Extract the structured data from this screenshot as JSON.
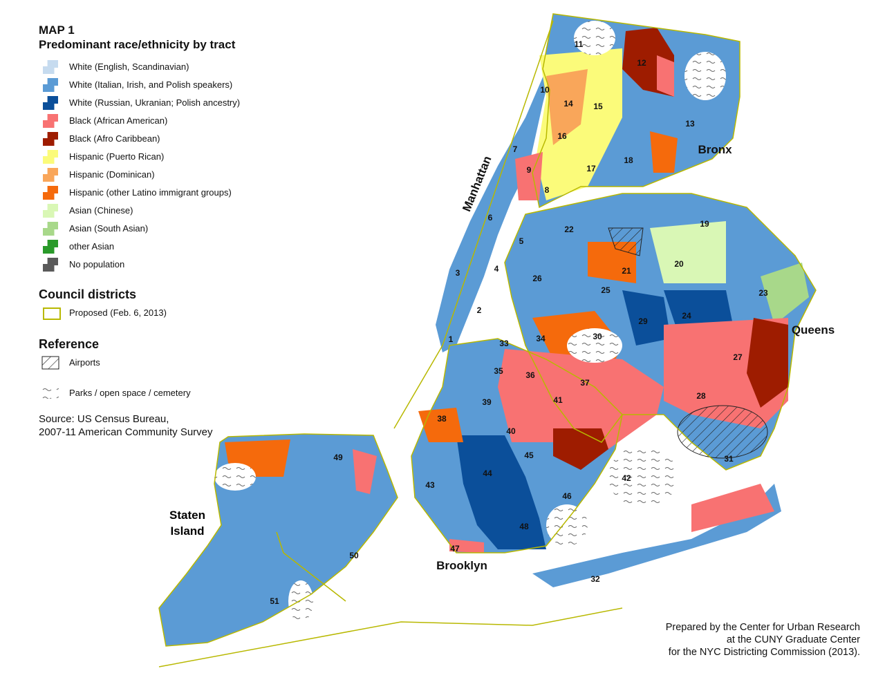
{
  "title": "MAP 1",
  "subtitle": "Predominant race/ethnicity by tract",
  "legend": [
    {
      "label": "White (English, Scandinavian)",
      "color": "#c6dbef"
    },
    {
      "label": "White (Italian, Irish, and Polish speakers)",
      "color": "#5b9bd5"
    },
    {
      "label": "White (Russian, Ukranian; Polish ancestry)",
      "color": "#0b4f9a"
    },
    {
      "label": "Black (African American)",
      "color": "#f87272"
    },
    {
      "label": "Black (Afro Caribbean)",
      "color": "#9e1c00"
    },
    {
      "label": "Hispanic (Puerto Rican)",
      "color": "#fbfb7a"
    },
    {
      "label": "Hispanic (Dominican)",
      "color": "#f9a65a"
    },
    {
      "label": "Hispanic (other Latino immigrant groups)",
      "color": "#f56a0c"
    },
    {
      "label": "Asian (Chinese)",
      "color": "#d9f7b5"
    },
    {
      "label": "Asian (South Asian)",
      "color": "#a8d88a"
    },
    {
      "label": "other Asian",
      "color": "#2a9a2a"
    },
    {
      "label": "No population",
      "color": "#5a5a5a"
    }
  ],
  "council_districts": {
    "heading": "Council districts",
    "item": "Proposed (Feb. 6, 2013)"
  },
  "reference": {
    "heading": "Reference",
    "items": [
      "Airports",
      "Parks / open space / cemetery"
    ]
  },
  "source": [
    "Source: US Census Bureau,",
    "2007-11 American Community Survey"
  ],
  "credit": [
    "Prepared by the Center for Urban Research",
    "at the CUNY Graduate Center",
    "for the NYC Districting Commission (2013)."
  ],
  "boroughs": [
    "Manhattan",
    "Bronx",
    "Queens",
    "Brooklyn",
    "Staten Island"
  ],
  "districts": [
    "1",
    "2",
    "3",
    "4",
    "5",
    "6",
    "7",
    "8",
    "9",
    "10",
    "11",
    "12",
    "13",
    "14",
    "15",
    "16",
    "17",
    "18",
    "19",
    "20",
    "21",
    "22",
    "23",
    "24",
    "25",
    "26",
    "27",
    "28",
    "29",
    "30",
    "31",
    "32",
    "33",
    "34",
    "35",
    "36",
    "37",
    "38",
    "39",
    "40",
    "41",
    "42",
    "43",
    "44",
    "45",
    "46",
    "47",
    "48",
    "49",
    "50",
    "51"
  ]
}
